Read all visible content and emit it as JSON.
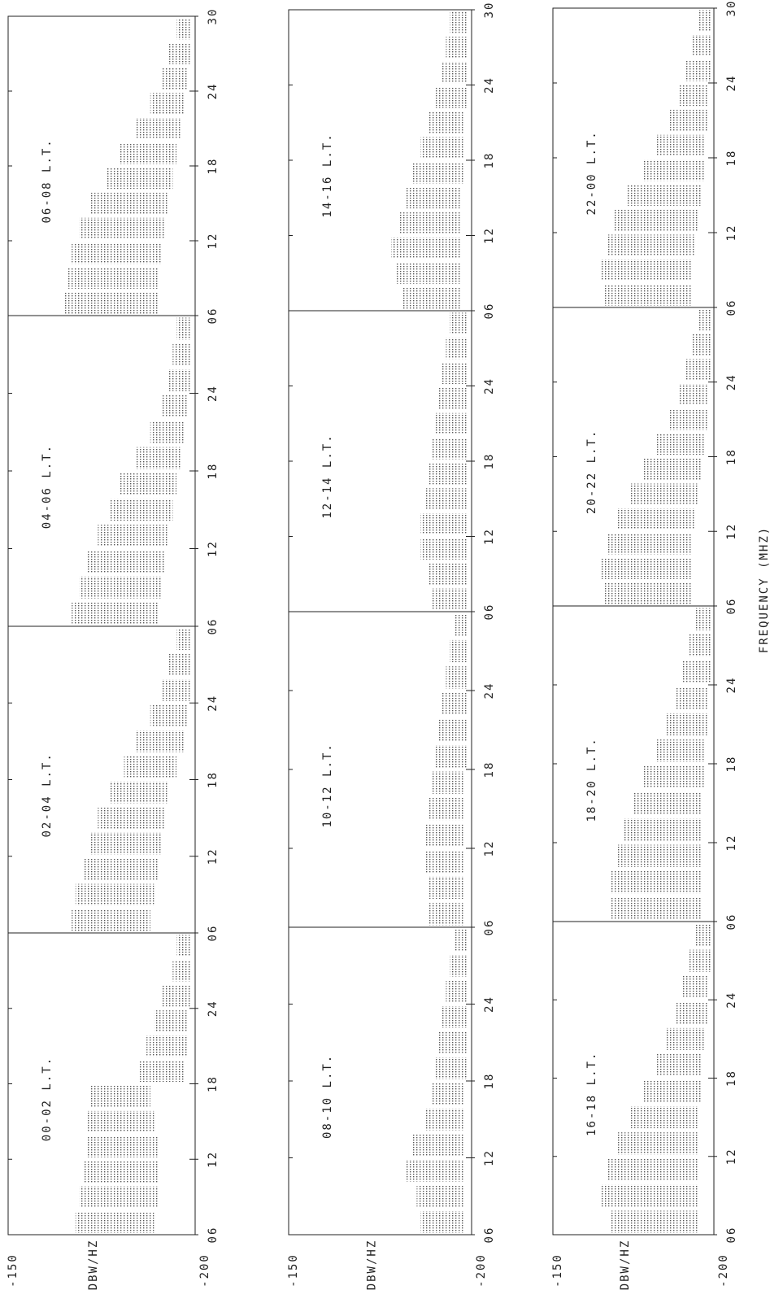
{
  "chart_data": [
    {
      "type": "range-strips",
      "ylabel": "DBW/HZ",
      "ylim": [
        -150,
        -200
      ],
      "yticks": [
        -150,
        -200
      ],
      "xlim": [
        6,
        30
      ],
      "x": [
        7,
        9,
        11,
        13,
        15,
        17,
        19,
        21,
        23,
        25,
        27,
        29
      ],
      "panels": [
        {
          "title": "00-02 L.T.",
          "xticks": [
            {
              "value": 6,
              "label": "06"
            },
            12,
            18,
            24
          ],
          "high": [
            -168,
            -169,
            -170,
            -171,
            -171,
            -172,
            -185,
            -187,
            -189,
            -191,
            -194,
            -195
          ],
          "low": [
            -189,
            -190,
            -190,
            -190,
            -189,
            -188,
            -197,
            -198,
            -198,
            -199,
            -199,
            -199
          ]
        },
        {
          "title": "02-04 L.T.",
          "xticks": [
            {
              "value": 6,
              "label": "06"
            },
            12,
            18,
            24
          ],
          "high": [
            -167,
            -168,
            -170,
            -172,
            -174,
            -177,
            -181,
            -184,
            -188,
            -191,
            -193,
            -195
          ],
          "low": [
            -188,
            -189,
            -190,
            -191,
            -192,
            -193,
            -195,
            -197,
            -198,
            -199,
            -199,
            -199
          ]
        },
        {
          "title": "04-06 L.T.",
          "xticks": [
            {
              "value": 6,
              "label": "06"
            },
            12,
            18,
            24
          ],
          "high": [
            -167,
            -169,
            -171,
            -174,
            -177,
            -180,
            -184,
            -188,
            -191,
            -193,
            -194,
            -195
          ],
          "low": [
            -190,
            -191,
            -192,
            -193,
            -194,
            -195,
            -196,
            -197,
            -198,
            -199,
            -199,
            -199
          ]
        },
        {
          "title": "06-08 L.T.",
          "xticks": [
            {
              "value": 6,
              "label": "06"
            },
            12,
            18,
            24,
            30
          ],
          "high": [
            -165,
            -166,
            -167,
            -169,
            -172,
            -176,
            -180,
            -184,
            -188,
            -191,
            -193,
            -195
          ],
          "low": [
            -190,
            -190,
            -191,
            -192,
            -193,
            -194,
            -195,
            -196,
            -197,
            -198,
            -199,
            -199
          ]
        }
      ]
    },
    {
      "type": "range-strips",
      "ylabel": "DBW/HZ",
      "ylim": [
        -150,
        -200
      ],
      "yticks": [
        -150,
        -200
      ],
      "xlim": [
        6,
        30
      ],
      "x": [
        7,
        9,
        11,
        13,
        15,
        17,
        19,
        21,
        23,
        25,
        27,
        29
      ],
      "panels": [
        {
          "title": "08-10 L.T.",
          "xticks": [
            {
              "value": 6,
              "label": "06"
            },
            12,
            18,
            24
          ],
          "high": [
            -186,
            -185,
            -182,
            -184,
            -187,
            -189,
            -190,
            -191,
            -192,
            -193,
            -194,
            -195
          ],
          "low": [
            -198,
            -198,
            -198,
            -198,
            -198,
            -198,
            -199,
            -199,
            -199,
            -199,
            -199,
            -199
          ]
        },
        {
          "title": "10-12 L.T.",
          "xticks": [
            {
              "value": 6,
              "label": "06"
            },
            12,
            18,
            24
          ],
          "high": [
            -188,
            -188,
            -187,
            -187,
            -188,
            -189,
            -190,
            -191,
            -192,
            -193,
            -194,
            -195
          ],
          "low": [
            -198,
            -198,
            -198,
            -198,
            -198,
            -198,
            -199,
            -199,
            -199,
            -199,
            -199,
            -199
          ]
        },
        {
          "title": "12-14 L.T.",
          "xticks": [
            {
              "value": 6,
              "label": "06"
            },
            12,
            18,
            24
          ],
          "high": [
            -189,
            -188,
            -186,
            -186,
            -187,
            -188,
            -189,
            -190,
            -191,
            -192,
            -193,
            -194
          ],
          "low": [
            -199,
            -199,
            -199,
            -199,
            -199,
            -199,
            -199,
            -199,
            -199,
            -199,
            -199,
            -199
          ]
        },
        {
          "title": "14-16 L.T.",
          "xticks": [
            {
              "value": 6,
              "label": "06"
            },
            12,
            18,
            24,
            30
          ],
          "high": [
            -181,
            -179,
            -178,
            -180,
            -182,
            -184,
            -186,
            -188,
            -190,
            -192,
            -193,
            -194
          ],
          "low": [
            -197,
            -197,
            -197,
            -197,
            -197,
            -198,
            -198,
            -198,
            -199,
            -199,
            -199,
            -199
          ]
        }
      ]
    },
    {
      "type": "range-strips",
      "ylabel": "DBW/HZ",
      "ylim": [
        -150,
        -200
      ],
      "yticks": [
        -150,
        -200
      ],
      "xlim": [
        6,
        30
      ],
      "xlabel": "FREQUENCY (MHZ)",
      "x": [
        7,
        9,
        11,
        13,
        15,
        17,
        19,
        21,
        23,
        25,
        27,
        29
      ],
      "panels": [
        {
          "title": "16-18 L.T.",
          "xticks": [
            {
              "value": 6,
              "label": "06"
            },
            12,
            18,
            24
          ],
          "high": [
            -168,
            -165,
            -167,
            -170,
            -174,
            -178,
            -182,
            -185,
            -188,
            -190,
            -192,
            -194
          ],
          "low": [
            -195,
            -195,
            -195,
            -195,
            -195,
            -196,
            -196,
            -197,
            -198,
            -198,
            -199,
            -199
          ]
        },
        {
          "title": "18-20 L.T.",
          "xticks": [
            {
              "value": 6,
              "label": "06"
            },
            12,
            18,
            24
          ],
          "high": [
            -168,
            -168,
            -170,
            -172,
            -175,
            -178,
            -182,
            -185,
            -188,
            -190,
            -192,
            -194
          ],
          "low": [
            -196,
            -196,
            -196,
            -196,
            -196,
            -197,
            -197,
            -198,
            -198,
            -199,
            -199,
            -199
          ]
        },
        {
          "title": "20-22 L.T.",
          "xticks": [
            {
              "value": 6,
              "label": "06"
            },
            12,
            18,
            24
          ],
          "high": [
            -166,
            -165,
            -167,
            -170,
            -174,
            -178,
            -182,
            -186,
            -189,
            -191,
            -193,
            -195
          ],
          "low": [
            -193,
            -193,
            -193,
            -194,
            -195,
            -196,
            -197,
            -198,
            -198,
            -199,
            -199,
            -199
          ]
        },
        {
          "title": "22-00 L.T.",
          "xticks": [
            {
              "value": 6,
              "label": "06"
            },
            12,
            18,
            24,
            30
          ],
          "high": [
            -166,
            -165,
            -167,
            -169,
            -173,
            -178,
            -182,
            -186,
            -189,
            -191,
            -193,
            -195
          ],
          "low": [
            -193,
            -193,
            -194,
            -195,
            -196,
            -197,
            -197,
            -198,
            -198,
            -199,
            -199,
            -199
          ]
        }
      ]
    }
  ]
}
